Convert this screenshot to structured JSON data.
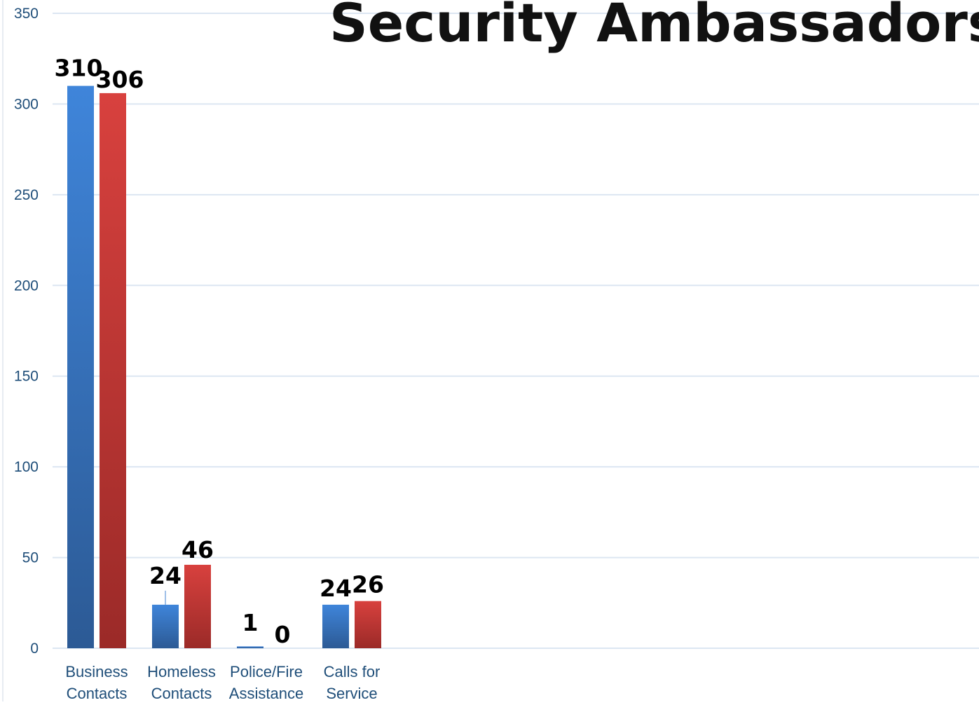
{
  "chart_data": {
    "type": "bar",
    "title": "Security Ambassadors",
    "xlabel": "",
    "ylabel": "",
    "categories": [
      [
        "Business",
        "Contacts"
      ],
      [
        "Homeless",
        "Contacts"
      ],
      [
        "Police/Fire",
        "Assistance"
      ],
      [
        "Calls for",
        "Service"
      ]
    ],
    "series": [
      {
        "color": "#3d7fd1",
        "values": [
          310,
          24,
          1,
          24
        ]
      },
      {
        "color": "#d23c3a",
        "values": [
          306,
          46,
          0,
          26
        ]
      }
    ],
    "ylim": [
      0,
      350
    ],
    "yticks": [
      0,
      50,
      100,
      150,
      200,
      250,
      300,
      350
    ],
    "grid": true,
    "legend": "none",
    "colors": {
      "gridline": "#dce6f2",
      "axis_text": "#1f4e79"
    }
  }
}
